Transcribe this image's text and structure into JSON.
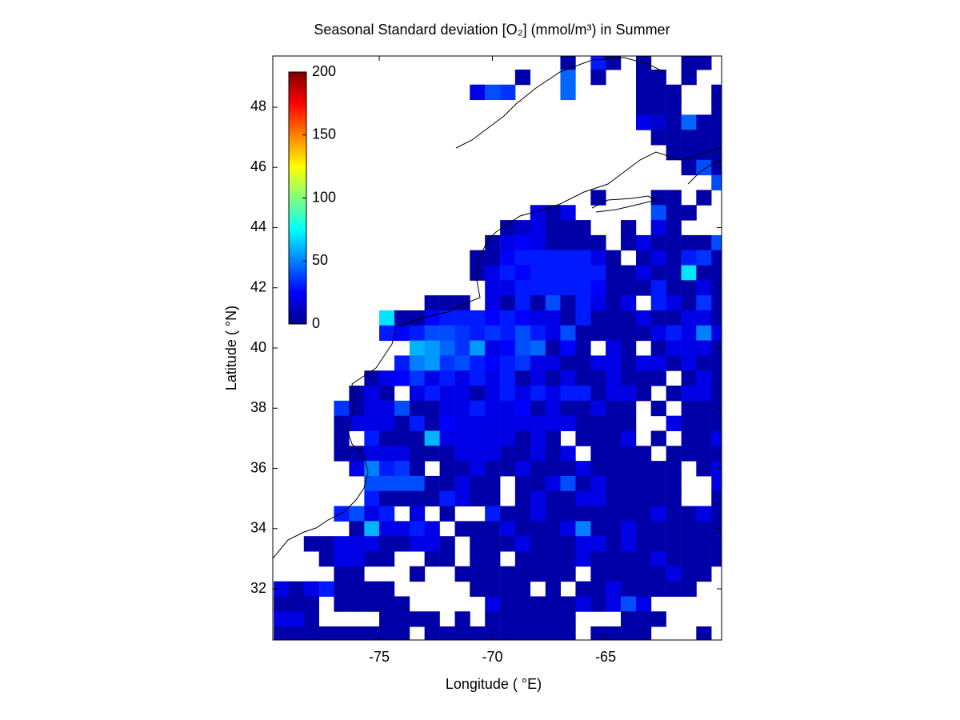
{
  "chart_data": {
    "type": "heatmap",
    "title": "Seasonal Standard deviation [O₂] (mmol/m³) in  Summer",
    "xlabel": "Longitude ( °E)",
    "ylabel": "Latitude ( °N)",
    "xlim": [
      -79.7,
      -59.88
    ],
    "ylim": [
      30.3,
      49.7
    ],
    "xticks": [
      -75,
      -70,
      -65
    ],
    "yticks": [
      32,
      34,
      36,
      38,
      40,
      42,
      44,
      46,
      48
    ],
    "colormap": "jet",
    "clim": [
      0,
      200
    ],
    "colorbar_ticks": [
      0,
      50,
      100,
      150,
      200
    ],
    "x": [
      -79.33,
      -78.67,
      -78,
      -77.33,
      -76.67,
      -76,
      -75.33,
      -74.67,
      -74,
      -73.33,
      -72.67,
      -72,
      -71.33,
      -70.67,
      -70,
      -69.33,
      -68.67,
      -68,
      -67.33,
      -66.67,
      -66,
      -65.33,
      -64.67,
      -64,
      -63.33,
      -62.67,
      -62,
      -61.33,
      -60.67,
      -60
    ],
    "y": [
      49.5,
      49,
      48.5,
      48,
      47.5,
      47,
      46.5,
      46,
      45.5,
      45,
      44.5,
      44,
      43.5,
      43,
      42.5,
      42,
      41.5,
      41,
      40.5,
      40,
      39.5,
      39,
      38.5,
      38,
      37.5,
      37,
      36.5,
      36,
      35.5,
      35,
      34.5,
      34,
      33.5,
      33,
      32.5,
      32,
      31.5,
      31,
      30.5
    ],
    "z": [
      [
        null,
        null,
        null,
        null,
        null,
        null,
        null,
        null,
        null,
        null,
        null,
        null,
        null,
        null,
        null,
        null,
        null,
        null,
        null,
        8,
        null,
        30,
        8,
        null,
        8,
        null,
        null,
        8,
        8,
        null
      ],
      [
        null,
        null,
        null,
        null,
        null,
        null,
        null,
        null,
        null,
        null,
        null,
        null,
        null,
        null,
        null,
        null,
        8,
        null,
        null,
        45,
        null,
        8,
        null,
        null,
        8,
        8,
        null,
        8,
        null,
        null
      ],
      [
        null,
        null,
        null,
        null,
        null,
        null,
        null,
        null,
        null,
        null,
        null,
        null,
        null,
        20,
        40,
        35,
        null,
        null,
        null,
        45,
        null,
        null,
        null,
        null,
        8,
        8,
        8,
        null,
        null,
        8
      ],
      [
        null,
        null,
        null,
        null,
        null,
        null,
        null,
        null,
        null,
        null,
        null,
        null,
        null,
        null,
        null,
        null,
        null,
        null,
        null,
        null,
        null,
        null,
        null,
        null,
        8,
        8,
        8,
        null,
        null,
        8
      ],
      [
        null,
        null,
        null,
        null,
        null,
        null,
        null,
        null,
        null,
        null,
        null,
        null,
        null,
        null,
        null,
        null,
        null,
        null,
        null,
        null,
        null,
        null,
        null,
        null,
        20,
        15,
        8,
        45,
        8,
        8
      ],
      [
        null,
        null,
        null,
        null,
        null,
        null,
        null,
        null,
        null,
        null,
        null,
        null,
        null,
        null,
        null,
        null,
        null,
        null,
        null,
        null,
        null,
        null,
        null,
        null,
        null,
        8,
        8,
        8,
        8,
        8
      ],
      [
        null,
        null,
        null,
        null,
        null,
        null,
        null,
        null,
        null,
        null,
        null,
        null,
        null,
        null,
        null,
        null,
        null,
        null,
        null,
        null,
        null,
        null,
        null,
        null,
        null,
        null,
        8,
        8,
        8,
        8
      ],
      [
        null,
        null,
        null,
        null,
        null,
        null,
        null,
        null,
        null,
        null,
        null,
        null,
        null,
        null,
        null,
        null,
        null,
        null,
        null,
        null,
        null,
        null,
        null,
        null,
        null,
        null,
        null,
        8,
        40,
        8
      ],
      [
        null,
        null,
        null,
        null,
        null,
        null,
        null,
        null,
        null,
        null,
        null,
        null,
        null,
        null,
        null,
        null,
        null,
        null,
        null,
        null,
        null,
        null,
        null,
        null,
        null,
        null,
        null,
        null,
        null,
        40
      ],
      [
        null,
        null,
        null,
        null,
        null,
        null,
        null,
        null,
        null,
        null,
        null,
        null,
        null,
        null,
        null,
        null,
        null,
        null,
        null,
        null,
        null,
        8,
        null,
        null,
        null,
        8,
        8,
        null,
        8,
        null
      ],
      [
        null,
        null,
        null,
        null,
        null,
        null,
        null,
        null,
        null,
        null,
        null,
        null,
        null,
        null,
        null,
        null,
        null,
        20,
        8,
        20,
        null,
        null,
        null,
        null,
        null,
        40,
        8,
        8,
        null,
        null
      ],
      [
        null,
        null,
        null,
        null,
        null,
        null,
        null,
        null,
        null,
        null,
        null,
        null,
        null,
        null,
        null,
        8,
        15,
        20,
        8,
        8,
        8,
        null,
        null,
        8,
        null,
        20,
        8,
        null,
        null,
        null
      ],
      [
        null,
        null,
        null,
        null,
        null,
        null,
        null,
        null,
        null,
        null,
        null,
        null,
        null,
        null,
        8,
        20,
        25,
        20,
        8,
        8,
        8,
        8,
        null,
        8,
        20,
        8,
        8,
        8,
        8,
        40
      ],
      [
        null,
        null,
        null,
        null,
        null,
        null,
        null,
        null,
        null,
        null,
        null,
        null,
        null,
        8,
        8,
        25,
        30,
        30,
        30,
        30,
        30,
        20,
        8,
        null,
        8,
        20,
        8,
        30,
        35,
        8
      ],
      [
        null,
        null,
        null,
        null,
        null,
        null,
        null,
        null,
        null,
        null,
        null,
        null,
        null,
        8,
        20,
        30,
        25,
        30,
        30,
        30,
        30,
        30,
        8,
        8,
        20,
        8,
        8,
        70,
        8,
        8
      ],
      [
        null,
        null,
        null,
        null,
        null,
        null,
        null,
        null,
        null,
        null,
        null,
        null,
        null,
        null,
        20,
        20,
        30,
        30,
        30,
        30,
        30,
        25,
        8,
        8,
        8,
        30,
        8,
        8,
        20,
        8
      ],
      [
        null,
        null,
        null,
        null,
        null,
        null,
        null,
        null,
        null,
        null,
        8,
        8,
        8,
        null,
        20,
        8,
        30,
        8,
        40,
        8,
        30,
        20,
        8,
        20,
        null,
        30,
        20,
        8,
        35,
        8
      ],
      [
        null,
        null,
        null,
        null,
        null,
        null,
        null,
        70,
        8,
        8,
        25,
        30,
        30,
        30,
        25,
        30,
        25,
        20,
        20,
        8,
        30,
        8,
        8,
        8,
        20,
        8,
        8,
        20,
        20,
        8
      ],
      [
        null,
        null,
        null,
        null,
        null,
        null,
        null,
        30,
        25,
        30,
        40,
        40,
        35,
        30,
        35,
        30,
        40,
        30,
        20,
        40,
        8,
        8,
        8,
        8,
        8,
        20,
        30,
        20,
        50,
        20
      ],
      [
        null,
        null,
        null,
        null,
        null,
        null,
        null,
        null,
        null,
        60,
        55,
        45,
        35,
        55,
        20,
        25,
        40,
        45,
        8,
        25,
        8,
        null,
        20,
        8,
        null,
        8,
        20,
        20,
        20,
        8
      ],
      [
        null,
        null,
        null,
        null,
        null,
        null,
        null,
        null,
        30,
        50,
        55,
        35,
        40,
        30,
        25,
        30,
        35,
        20,
        20,
        8,
        8,
        20,
        20,
        8,
        20,
        20,
        8,
        20,
        8,
        8
      ],
      [
        null,
        null,
        null,
        null,
        null,
        null,
        8,
        20,
        25,
        35,
        20,
        30,
        20,
        30,
        20,
        30,
        8,
        20,
        8,
        20,
        8,
        8,
        20,
        8,
        8,
        8,
        null,
        8,
        20,
        8
      ],
      [
        null,
        null,
        null,
        null,
        null,
        8,
        20,
        8,
        null,
        20,
        30,
        20,
        20,
        8,
        20,
        30,
        20,
        30,
        20,
        30,
        30,
        8,
        20,
        20,
        8,
        null,
        8,
        20,
        20,
        8
      ],
      [
        null,
        null,
        null,
        null,
        35,
        8,
        20,
        20,
        40,
        8,
        8,
        20,
        20,
        30,
        20,
        20,
        25,
        8,
        20,
        8,
        8,
        20,
        8,
        8,
        null,
        8,
        null,
        8,
        8,
        8
      ],
      [
        null,
        null,
        null,
        null,
        8,
        20,
        20,
        20,
        8,
        30,
        8,
        25,
        20,
        20,
        20,
        20,
        20,
        20,
        20,
        20,
        8,
        8,
        8,
        8,
        null,
        null,
        20,
        8,
        8,
        8
      ],
      [
        null,
        null,
        null,
        null,
        8,
        null,
        30,
        8,
        8,
        8,
        60,
        20,
        20,
        20,
        20,
        20,
        8,
        20,
        8,
        null,
        8,
        8,
        8,
        20,
        null,
        8,
        null,
        8,
        8,
        20
      ],
      [
        null,
        null,
        null,
        null,
        8,
        8,
        20,
        20,
        20,
        8,
        8,
        8,
        20,
        20,
        20,
        8,
        8,
        20,
        8,
        20,
        null,
        8,
        8,
        8,
        8,
        null,
        8,
        8,
        8,
        8
      ],
      [
        null,
        null,
        null,
        null,
        null,
        20,
        50,
        30,
        35,
        8,
        null,
        8,
        8,
        20,
        8,
        8,
        20,
        8,
        8,
        8,
        20,
        8,
        8,
        8,
        8,
        8,
        8,
        null,
        8,
        20
      ],
      [
        null,
        null,
        null,
        null,
        null,
        null,
        40,
        40,
        40,
        40,
        8,
        8,
        20,
        8,
        8,
        null,
        8,
        8,
        20,
        40,
        8,
        20,
        8,
        8,
        8,
        8,
        8,
        null,
        null,
        20
      ],
      [
        null,
        null,
        null,
        null,
        null,
        null,
        30,
        8,
        8,
        8,
        8,
        30,
        20,
        8,
        8,
        null,
        8,
        20,
        8,
        8,
        20,
        20,
        8,
        8,
        8,
        8,
        8,
        null,
        null,
        8
      ],
      [
        null,
        null,
        null,
        null,
        30,
        40,
        20,
        30,
        null,
        20,
        null,
        8,
        null,
        null,
        30,
        8,
        8,
        20,
        8,
        8,
        8,
        8,
        8,
        8,
        8,
        20,
        8,
        8,
        20,
        8
      ],
      [
        null,
        null,
        null,
        null,
        null,
        8,
        60,
        20,
        20,
        30,
        20,
        null,
        8,
        8,
        8,
        20,
        8,
        8,
        8,
        20,
        50,
        8,
        8,
        20,
        8,
        8,
        8,
        8,
        8,
        8
      ],
      [
        null,
        null,
        8,
        8,
        20,
        20,
        20,
        8,
        8,
        20,
        20,
        8,
        null,
        8,
        8,
        8,
        20,
        8,
        8,
        8,
        20,
        20,
        8,
        20,
        8,
        8,
        8,
        8,
        8,
        8
      ],
      [
        null,
        null,
        null,
        8,
        20,
        20,
        8,
        8,
        null,
        null,
        8,
        8,
        null,
        8,
        8,
        null,
        8,
        8,
        8,
        8,
        20,
        8,
        8,
        8,
        8,
        20,
        8,
        8,
        8,
        8
      ],
      [
        null,
        null,
        null,
        null,
        8,
        8,
        null,
        null,
        null,
        8,
        null,
        null,
        8,
        8,
        8,
        8,
        8,
        8,
        8,
        8,
        null,
        8,
        8,
        8,
        8,
        8,
        20,
        8,
        8,
        null
      ],
      [
        20,
        8,
        20,
        30,
        8,
        8,
        8,
        8,
        null,
        null,
        null,
        null,
        null,
        8,
        8,
        8,
        8,
        null,
        8,
        null,
        8,
        8,
        20,
        8,
        8,
        8,
        8,
        8,
        null,
        null
      ],
      [
        8,
        8,
        8,
        null,
        8,
        8,
        8,
        8,
        8,
        null,
        null,
        null,
        null,
        null,
        20,
        8,
        8,
        8,
        8,
        8,
        20,
        8,
        20,
        40,
        20,
        null,
        null,
        null,
        null,
        null
      ],
      [
        20,
        20,
        8,
        null,
        null,
        null,
        null,
        8,
        8,
        8,
        8,
        null,
        8,
        null,
        8,
        8,
        8,
        8,
        8,
        8,
        null,
        null,
        null,
        8,
        8,
        8,
        null,
        null,
        null,
        null
      ],
      [
        8,
        8,
        8,
        8,
        8,
        8,
        8,
        8,
        8,
        null,
        8,
        8,
        8,
        8,
        8,
        8,
        8,
        8,
        8,
        8,
        null,
        8,
        8,
        8,
        8,
        null,
        null,
        null,
        8,
        null
      ]
    ]
  }
}
